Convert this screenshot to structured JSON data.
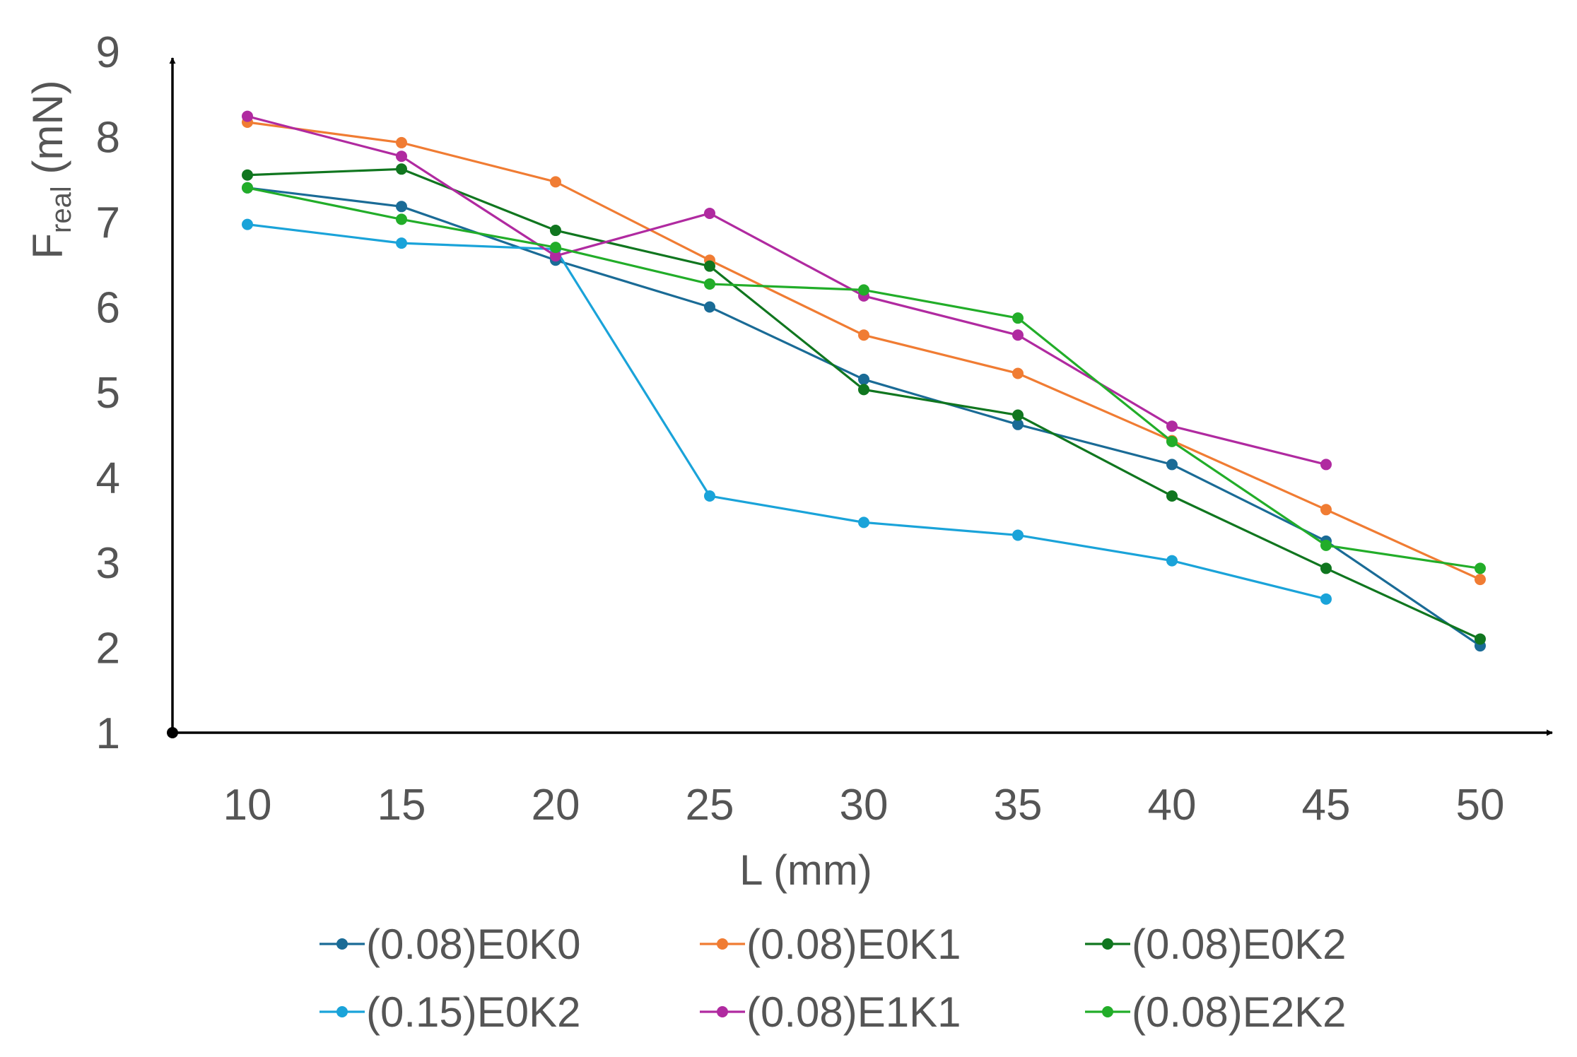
{
  "chart_data": {
    "type": "line",
    "title": "",
    "xlabel": "L (mm)",
    "ylabel": {
      "main": "F",
      "sub": "real",
      "unit": " (mN)"
    },
    "x": [
      10,
      15,
      20,
      25,
      30,
      35,
      40,
      45,
      50
    ],
    "x_tick_labels": [
      "10",
      "15",
      "20",
      "25",
      "30",
      "35",
      "40",
      "45",
      "50"
    ],
    "y_tick_labels": [
      "1",
      "2",
      "3",
      "4",
      "5",
      "6",
      "7",
      "8",
      "9"
    ],
    "ylim": [
      1,
      9
    ],
    "grid": false,
    "legend_position": "bottom",
    "series": [
      {
        "name": "(0.08)E0K0",
        "color": "#1a6b96",
        "values": [
          7.4,
          7.18,
          6.55,
          6.0,
          5.15,
          4.62,
          4.15,
          3.25,
          2.02
        ]
      },
      {
        "name": "(0.08)E0K1",
        "color": "#f07c33",
        "values": [
          8.17,
          7.93,
          7.47,
          6.55,
          5.67,
          5.22,
          4.43,
          3.62,
          2.8
        ]
      },
      {
        "name": "(0.08)E0K2",
        "color": "#10761f",
        "values": [
          7.55,
          7.62,
          6.9,
          6.48,
          5.03,
          4.73,
          3.78,
          2.93,
          2.1
        ]
      },
      {
        "name": "(0.15)E0K2",
        "color": "#1aa3d9",
        "values": [
          6.97,
          6.75,
          6.68,
          3.78,
          3.47,
          3.32,
          3.02,
          2.57,
          null
        ]
      },
      {
        "name": "(0.08)E1K1",
        "color": "#b02aa0",
        "values": [
          8.24,
          7.77,
          6.6,
          7.1,
          6.13,
          5.67,
          4.6,
          4.15,
          null
        ]
      },
      {
        "name": "(0.08)E2K2",
        "color": "#22ad29",
        "values": [
          7.4,
          7.03,
          6.7,
          6.27,
          6.2,
          5.87,
          4.42,
          3.2,
          2.93
        ]
      }
    ]
  }
}
